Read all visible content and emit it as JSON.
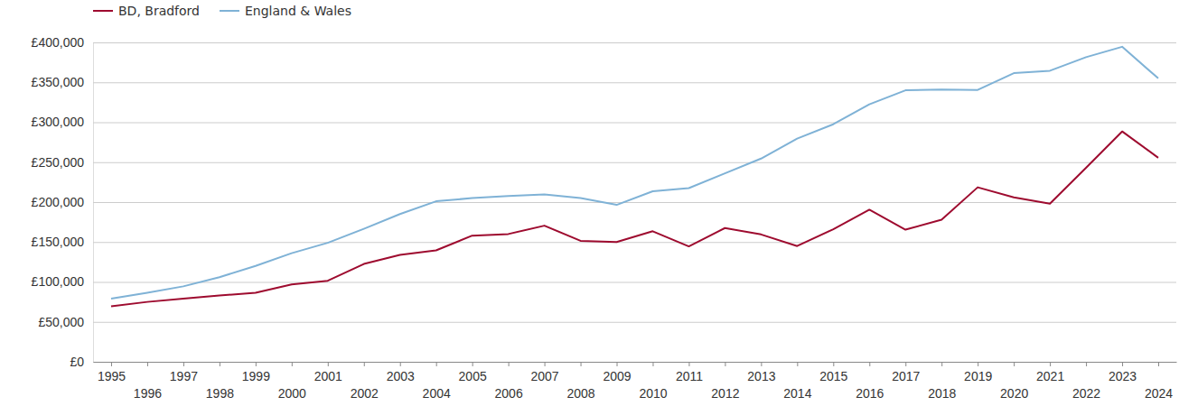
{
  "chart_data": {
    "type": "line",
    "legend": "top-left",
    "grid": true,
    "x": [
      1995,
      1996,
      1997,
      1998,
      1999,
      2000,
      2001,
      2002,
      2003,
      2004,
      2005,
      2006,
      2007,
      2008,
      2009,
      2010,
      2011,
      2012,
      2013,
      2014,
      2015,
      2016,
      2017,
      2018,
      2019,
      2020,
      2021,
      2022,
      2023,
      2024
    ],
    "xlim": [
      1994.5,
      2024.5
    ],
    "xticks": [
      1995,
      1996,
      1997,
      1998,
      1999,
      2000,
      2001,
      2002,
      2003,
      2004,
      2005,
      2006,
      2007,
      2008,
      2009,
      2010,
      2011,
      2012,
      2013,
      2014,
      2015,
      2016,
      2017,
      2018,
      2019,
      2020,
      2021,
      2022,
      2023,
      2024
    ],
    "ylim": [
      0,
      400000
    ],
    "yticks": [
      {
        "value": 0,
        "label": "£0"
      },
      {
        "value": 50000,
        "label": "£50,000"
      },
      {
        "value": 100000,
        "label": "£100,000"
      },
      {
        "value": 150000,
        "label": "£150,000"
      },
      {
        "value": 200000,
        "label": "£200,000"
      },
      {
        "value": 250000,
        "label": "£250,000"
      },
      {
        "value": 300000,
        "label": "£300,000"
      },
      {
        "value": 350000,
        "label": "£350,000"
      },
      {
        "value": 400000,
        "label": "£400,000"
      }
    ],
    "series": [
      {
        "name": "BD, Bradford",
        "color": "#9e0b2f",
        "values": [
          69500,
          75000,
          79000,
          83000,
          86500,
          97000,
          101500,
          122500,
          134000,
          139500,
          158000,
          160000,
          170500,
          151500,
          150000,
          163500,
          144500,
          167500,
          159500,
          145000,
          166000,
          190500,
          165500,
          178000,
          218500,
          206000,
          198000,
          243000,
          288500,
          255500
        ]
      },
      {
        "name": "England & Wales",
        "color": "#7fb2d6",
        "values": [
          79000,
          86500,
          94500,
          106000,
          120000,
          136000,
          149000,
          166500,
          185000,
          201000,
          205000,
          207500,
          209500,
          205000,
          196500,
          213500,
          217500,
          236000,
          254500,
          279500,
          297500,
          322500,
          340000,
          341000,
          340500,
          361500,
          364500,
          381500,
          394500,
          355000
        ]
      }
    ]
  }
}
